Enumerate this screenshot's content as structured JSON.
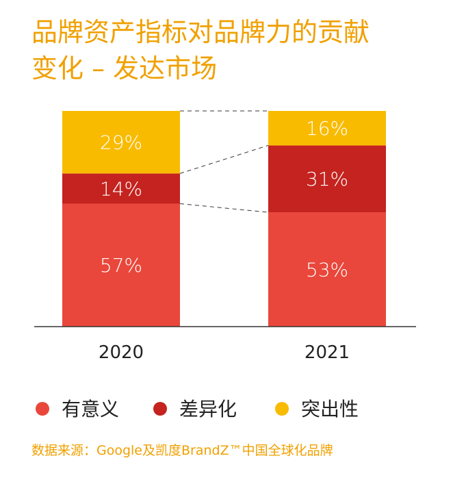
{
  "chart_data": {
    "type": "bar",
    "stacked": true,
    "normalized": true,
    "title": [
      "品牌资产指标对品牌力的贡献",
      "变化  –  发达市场"
    ],
    "categories": [
      "2020",
      "2021"
    ],
    "series": [
      {
        "name": "有意义",
        "values": [
          57,
          53
        ],
        "labels": [
          "57%",
          "53%"
        ],
        "color": "#e9473b"
      },
      {
        "name": "差异化",
        "values": [
          14,
          31
        ],
        "labels": [
          "14%",
          "31%"
        ],
        "color": "#c4231f"
      },
      {
        "name": "突出性",
        "values": [
          29,
          16
        ],
        "labels": [
          "29%",
          "16%"
        ],
        "color": "#f9bb00"
      }
    ],
    "ylim": [
      0,
      100
    ],
    "xlabel": "",
    "ylabel": "",
    "legend_position": "bottom-left",
    "source": "数据来源：Google及凯度BrandZ™中国全球化品牌"
  }
}
